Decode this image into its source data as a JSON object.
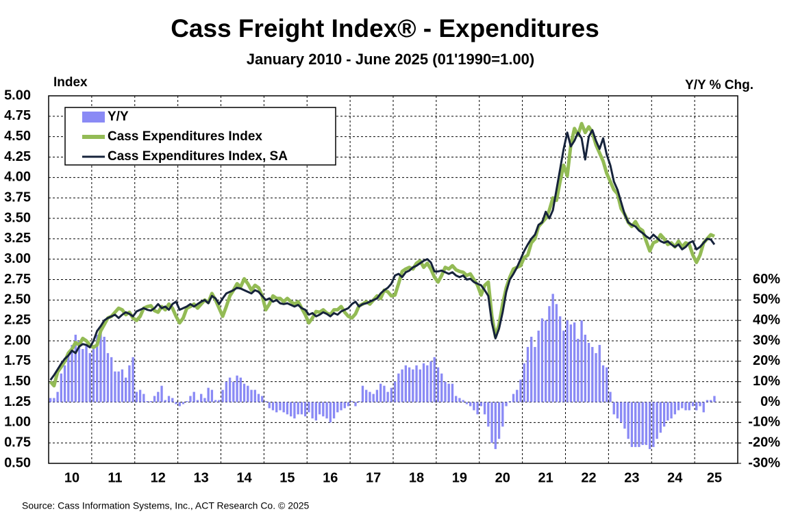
{
  "chart_data": {
    "type": "bar-line",
    "title": "Cass Freight Index® - Expenditures",
    "subtitle": "January 2010 - June 2025 (01'1990=1.00)",
    "y_label": "Index",
    "y2_label": "Y/Y % Chg.",
    "source": "Source: Cass Information Systems, Inc., ACT Research Co. © 2025",
    "legend": "upper left",
    "grid": true,
    "ylim": [
      0.5,
      5.0
    ],
    "yticks": [
      {
        "value": 0.5,
        "label": "0.50"
      },
      {
        "value": 0.75,
        "label": "0.75"
      },
      {
        "value": 1.0,
        "label": "1.00"
      },
      {
        "value": 1.25,
        "label": "1.25"
      },
      {
        "value": 1.5,
        "label": "1.50"
      },
      {
        "value": 1.75,
        "label": "1.75"
      },
      {
        "value": 2.0,
        "label": "2.00"
      },
      {
        "value": 2.25,
        "label": "2.25"
      },
      {
        "value": 2.5,
        "label": "2.50"
      },
      {
        "value": 2.75,
        "label": "2.75"
      },
      {
        "value": 3.0,
        "label": "3.00"
      },
      {
        "value": 3.25,
        "label": "3.25"
      },
      {
        "value": 3.5,
        "label": "3.50"
      },
      {
        "value": 3.75,
        "label": "3.75"
      },
      {
        "value": 4.0,
        "label": "4.00"
      },
      {
        "value": 4.25,
        "label": "4.25"
      },
      {
        "value": 4.5,
        "label": "4.50"
      },
      {
        "value": 4.75,
        "label": "4.75"
      },
      {
        "value": 5.0,
        "label": "5.00"
      }
    ],
    "y2lim": [
      -30,
      150
    ],
    "y2ticks": [
      {
        "value": -30,
        "label": "-30%"
      },
      {
        "value": -20,
        "label": "-20%"
      },
      {
        "value": -10,
        "label": "-10%"
      },
      {
        "value": 0,
        "label": "0%"
      },
      {
        "value": 10,
        "label": "10%"
      },
      {
        "value": 20,
        "label": "20%"
      },
      {
        "value": 30,
        "label": "30%"
      },
      {
        "value": 40,
        "label": "40%"
      },
      {
        "value": 50,
        "label": "50%"
      },
      {
        "value": 60,
        "label": "60%"
      }
    ],
    "categories": [
      null,
      null,
      null,
      null,
      null,
      null,
      "10",
      null,
      null,
      null,
      null,
      null,
      null,
      null,
      null,
      null,
      null,
      null,
      "11",
      null,
      null,
      null,
      null,
      null,
      null,
      null,
      null,
      null,
      null,
      null,
      "12",
      null,
      null,
      null,
      null,
      null,
      null,
      null,
      null,
      null,
      null,
      null,
      "13",
      null,
      null,
      null,
      null,
      null,
      null,
      null,
      null,
      null,
      null,
      null,
      "14",
      null,
      null,
      null,
      null,
      null,
      null,
      null,
      null,
      null,
      null,
      null,
      "15",
      null,
      null,
      null,
      null,
      null,
      null,
      null,
      null,
      null,
      null,
      null,
      "16",
      null,
      null,
      null,
      null,
      null,
      null,
      null,
      null,
      null,
      null,
      null,
      "17",
      null,
      null,
      null,
      null,
      null,
      null,
      null,
      null,
      null,
      null,
      null,
      "18",
      null,
      null,
      null,
      null,
      null,
      null,
      null,
      null,
      null,
      null,
      null,
      "19",
      null,
      null,
      null,
      null,
      null,
      null,
      null,
      null,
      null,
      null,
      null,
      "20",
      null,
      null,
      null,
      null,
      null,
      null,
      null,
      null,
      null,
      null,
      null,
      "21",
      null,
      null,
      null,
      null,
      null,
      null,
      null,
      null,
      null,
      null,
      null,
      "22",
      null,
      null,
      null,
      null,
      null,
      null,
      null,
      null,
      null,
      null,
      null,
      "23",
      null,
      null,
      null,
      null,
      null,
      null,
      null,
      null,
      null,
      null,
      null,
      "24",
      null,
      null,
      null,
      null,
      null,
      null,
      null,
      null,
      null,
      null,
      "25"
    ],
    "series": [
      {
        "name": "Y/Y",
        "type": "bar",
        "axis": "y2",
        "color": "#8a8af5",
        "values": [
          2,
          2,
          5,
          14,
          18,
          24,
          28,
          33,
          30,
          26,
          28,
          24,
          28,
          33,
          35,
          32,
          24,
          22,
          15,
          15,
          16,
          12,
          18,
          22,
          5,
          6,
          4,
          0.5,
          0.5,
          3,
          5,
          8,
          1,
          3,
          2,
          -1,
          -2,
          -1,
          0.5,
          3,
          5,
          1,
          4,
          2,
          7,
          6,
          1,
          1,
          6,
          10,
          12,
          10,
          13,
          12,
          9,
          8,
          6,
          6,
          4,
          3,
          0.5,
          -3,
          -4,
          -5,
          -4,
          -5,
          -6,
          -7,
          -8,
          -6,
          -6,
          -7,
          -5,
          -8,
          -9,
          -6,
          -7,
          -8,
          -10,
          -8,
          -5,
          -4,
          -3,
          -2,
          0.5,
          -2,
          0.5,
          8,
          6,
          5,
          4,
          6,
          9,
          8,
          5,
          7,
          10,
          14,
          16,
          18,
          17,
          16,
          18,
          16,
          19,
          18,
          20,
          22,
          17,
          14,
          10,
          9,
          9,
          3,
          2,
          1,
          -1,
          -2,
          -4,
          -6,
          -2,
          -6,
          -12,
          -20,
          -23,
          -18,
          -12,
          -2,
          0.5,
          4,
          6,
          11,
          19,
          27,
          32,
          27,
          35,
          41,
          40,
          47,
          53,
          48,
          42,
          35,
          40,
          38,
          39,
          31,
          40,
          33,
          29,
          27,
          24,
          28,
          18,
          17,
          5,
          -6,
          -8,
          -10,
          -13,
          -18,
          -22,
          -22,
          -22,
          -21,
          -21,
          -23,
          -22,
          -18,
          -15,
          -12,
          -9,
          -8,
          -6,
          -4,
          -3,
          -4,
          -4,
          -2,
          -4,
          -2,
          -5,
          1,
          1,
          3
        ]
      },
      {
        "name": "Cass Expenditures Index",
        "type": "line",
        "color": "#93bb55",
        "values": [
          1.5,
          1.45,
          1.62,
          1.68,
          1.75,
          1.85,
          1.9,
          1.98,
          1.95,
          2.03,
          2.0,
          1.95,
          1.92,
          1.95,
          2.12,
          2.2,
          2.28,
          2.3,
          2.35,
          2.4,
          2.38,
          2.32,
          2.35,
          2.28,
          2.25,
          2.3,
          2.4,
          2.42,
          2.43,
          2.37,
          2.35,
          2.42,
          2.38,
          2.45,
          2.4,
          2.3,
          2.22,
          2.28,
          2.4,
          2.42,
          2.45,
          2.4,
          2.45,
          2.5,
          2.47,
          2.58,
          2.5,
          2.4,
          2.3,
          2.42,
          2.55,
          2.62,
          2.7,
          2.66,
          2.76,
          2.7,
          2.62,
          2.68,
          2.65,
          2.55,
          2.38,
          2.45,
          2.55,
          2.52,
          2.52,
          2.48,
          2.52,
          2.48,
          2.45,
          2.48,
          2.4,
          2.32,
          2.22,
          2.28,
          2.36,
          2.35,
          2.38,
          2.34,
          2.32,
          2.38,
          2.38,
          2.42,
          2.35,
          2.3,
          2.28,
          2.33,
          2.43,
          2.45,
          2.48,
          2.45,
          2.5,
          2.55,
          2.52,
          2.62,
          2.6,
          2.55,
          2.56,
          2.7,
          2.85,
          2.88,
          2.9,
          2.88,
          2.95,
          2.98,
          2.9,
          2.95,
          2.88,
          2.78,
          2.72,
          2.8,
          2.9,
          2.88,
          2.92,
          2.87,
          2.85,
          2.84,
          2.8,
          2.82,
          2.75,
          2.68,
          2.56,
          2.68,
          2.72,
          2.3,
          2.05,
          2.2,
          2.45,
          2.65,
          2.78,
          2.88,
          2.9,
          2.92,
          3.02,
          3.05,
          3.2,
          3.25,
          3.4,
          3.45,
          3.5,
          3.6,
          3.75,
          3.72,
          3.95,
          4.15,
          4.02,
          4.4,
          4.6,
          4.52,
          4.66,
          4.55,
          4.62,
          4.55,
          4.4,
          4.3,
          4.2,
          4.05,
          3.95,
          3.85,
          3.8,
          3.62,
          3.55,
          3.45,
          3.4,
          3.46,
          3.38,
          3.35,
          3.22,
          3.1,
          3.2,
          3.22,
          3.3,
          3.25,
          3.18,
          3.2,
          3.15,
          3.22,
          3.15,
          3.2,
          3.18,
          3.05,
          2.96,
          3.05,
          3.2,
          3.25,
          3.3,
          3.28
        ]
      },
      {
        "name": "Cass Expenditures Index, SA",
        "type": "line",
        "color": "#16233b",
        "values": [
          1.52,
          1.58,
          1.65,
          1.72,
          1.78,
          1.82,
          1.88,
          1.85,
          1.93,
          1.96,
          1.95,
          1.92,
          2.0,
          2.12,
          2.18,
          2.25,
          2.28,
          2.3,
          2.32,
          2.28,
          2.32,
          2.35,
          2.33,
          2.3,
          2.36,
          2.38,
          2.4,
          2.38,
          2.37,
          2.4,
          2.45,
          2.4,
          2.42,
          2.38,
          2.45,
          2.48,
          2.38,
          2.4,
          2.42,
          2.45,
          2.42,
          2.45,
          2.48,
          2.5,
          2.46,
          2.55,
          2.52,
          2.45,
          2.52,
          2.58,
          2.6,
          2.62,
          2.65,
          2.64,
          2.62,
          2.6,
          2.58,
          2.62,
          2.6,
          2.55,
          2.5,
          2.52,
          2.48,
          2.5,
          2.46,
          2.45,
          2.46,
          2.44,
          2.42,
          2.44,
          2.4,
          2.38,
          2.32,
          2.34,
          2.3,
          2.32,
          2.35,
          2.33,
          2.3,
          2.34,
          2.32,
          2.36,
          2.38,
          2.4,
          2.45,
          2.48,
          2.42,
          2.45,
          2.46,
          2.48,
          2.5,
          2.52,
          2.58,
          2.62,
          2.65,
          2.7,
          2.8,
          2.82,
          2.78,
          2.84,
          2.86,
          2.9,
          2.92,
          2.95,
          2.98,
          3.0,
          2.96,
          2.85,
          2.85,
          2.86,
          2.84,
          2.82,
          2.84,
          2.8,
          2.78,
          2.8,
          2.75,
          2.76,
          2.72,
          2.7,
          2.68,
          2.62,
          2.55,
          2.22,
          2.03,
          2.15,
          2.35,
          2.6,
          2.75,
          2.82,
          2.9,
          3.0,
          3.1,
          3.18,
          3.25,
          3.3,
          3.42,
          3.45,
          3.58,
          3.5,
          3.6,
          3.85,
          4.1,
          4.35,
          4.55,
          4.38,
          4.45,
          4.55,
          4.48,
          4.22,
          4.5,
          4.58,
          4.45,
          4.35,
          4.48,
          4.28,
          4.15,
          3.95,
          3.85,
          3.7,
          3.55,
          3.45,
          3.42,
          3.4,
          3.35,
          3.32,
          3.28,
          3.25,
          3.3,
          3.26,
          3.22,
          3.2,
          3.22,
          3.18,
          3.15,
          3.18,
          3.12,
          3.15,
          3.2,
          3.22,
          3.12,
          3.15,
          3.2,
          3.25,
          3.24,
          3.18
        ]
      }
    ]
  }
}
